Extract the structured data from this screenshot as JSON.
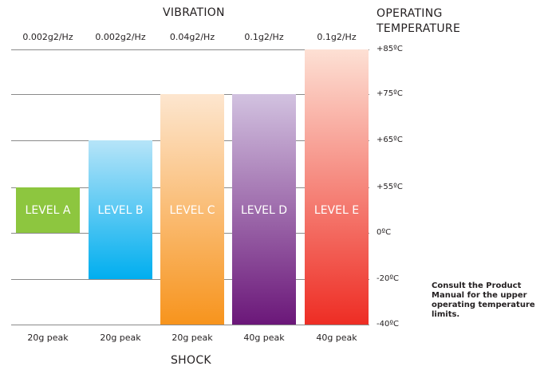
{
  "chart_data": {
    "type": "bar",
    "title": "VIBRATION",
    "xlabel": "SHOCK",
    "ylabel": "OPERATING TEMPERATURE",
    "categories": [
      "LEVEL A",
      "LEVEL B",
      "LEVEL C",
      "LEVEL D",
      "LEVEL E"
    ],
    "vibration_labels": [
      "0.002g2/Hz",
      "0.002g2/Hz",
      "0.04g2/Hz",
      "0.1g2/Hz",
      "0.1g2/Hz"
    ],
    "shock_labels": [
      "20g peak",
      "20g peak",
      "20g peak",
      "40g peak",
      "40g peak"
    ],
    "temperature_ranges": [
      {
        "low": 0,
        "high": 55
      },
      {
        "low": -20,
        "high": 65
      },
      {
        "low": -40,
        "high": 75
      },
      {
        "low": -40,
        "high": 75
      },
      {
        "low": -40,
        "high": 85
      }
    ],
    "y_ticks": [
      "+85ºC",
      "+75ºC",
      "+65ºC",
      "+55ºC",
      "0ºC",
      "-20ºC",
      "-40ºC"
    ],
    "y_tick_values": [
      85,
      75,
      65,
      55,
      0,
      -20,
      -40
    ],
    "colors": [
      {
        "top": "#8dc63f",
        "bottom": "#8dc63f"
      },
      {
        "top": "#b6e4f8",
        "bottom": "#00aeef"
      },
      {
        "top": "#fde6cf",
        "bottom": "#f7941d"
      },
      {
        "top": "#d2c2e0",
        "bottom": "#6b1779"
      },
      {
        "top": "#fde0d4",
        "bottom": "#ee2d24"
      }
    ],
    "grid": true,
    "note": "Consult the Product Manual for the upper operating temperature limits."
  }
}
